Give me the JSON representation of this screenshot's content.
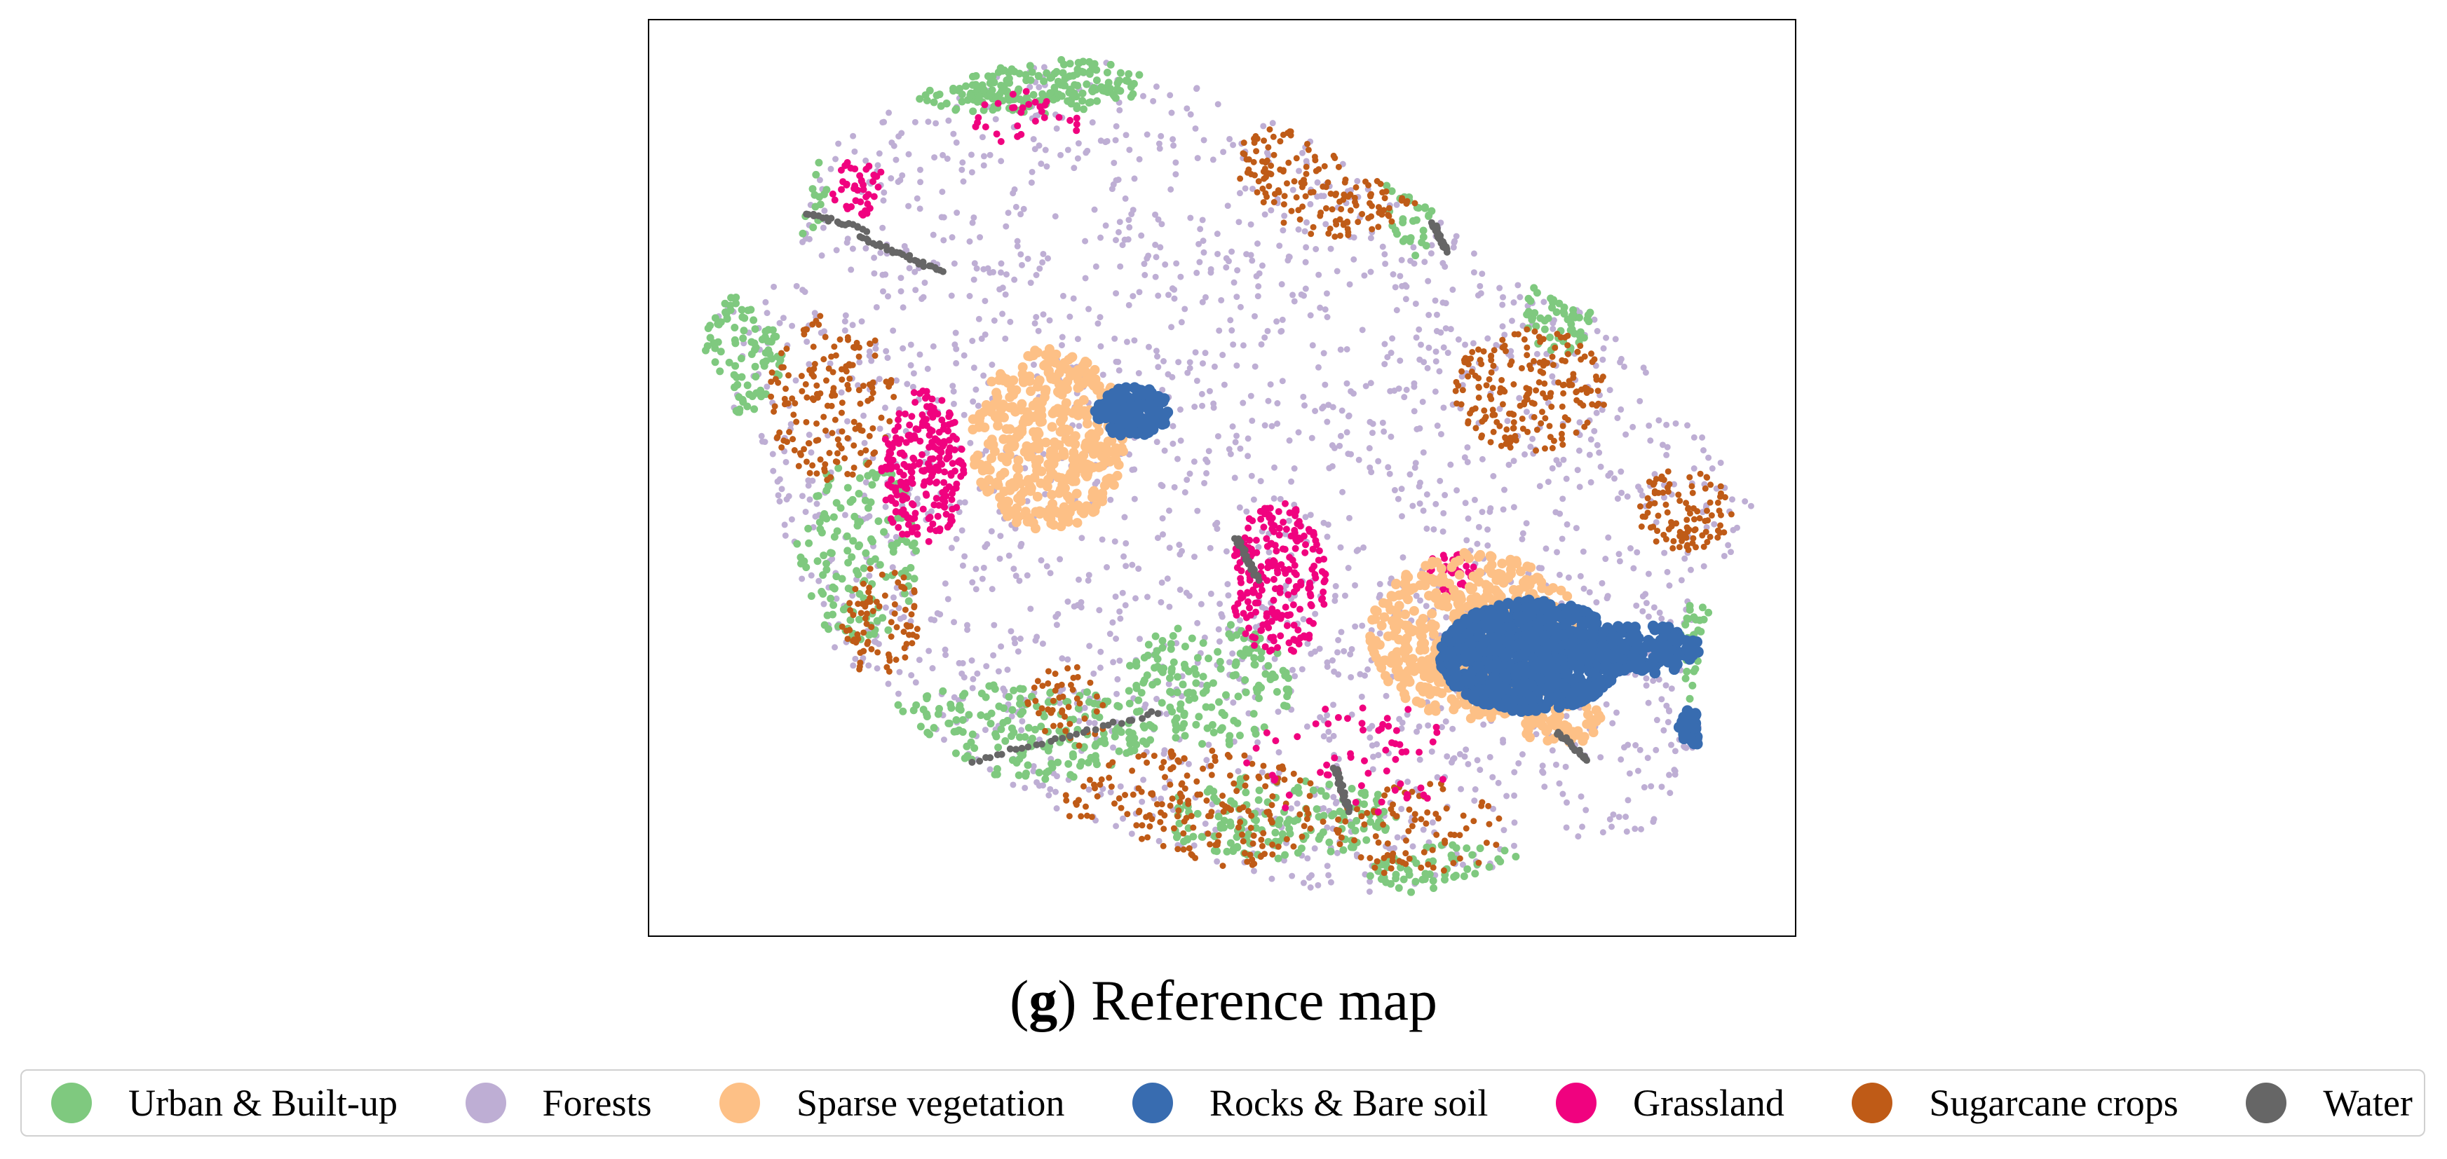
{
  "caption": {
    "letter": "g",
    "text": "Reference map"
  },
  "legend": [
    {
      "label": "Urban & Built-up",
      "color": "#7fc97f",
      "icon": "urban-marker-icon"
    },
    {
      "label": "Forests",
      "color": "#beaed4",
      "icon": "forests-marker-icon"
    },
    {
      "label": "Sparse vegetation",
      "color": "#fdc086",
      "icon": "sparse-vegetation-marker-icon"
    },
    {
      "label": "Rocks & Bare soil",
      "color": "#386cb0",
      "icon": "rocks-bare-soil-marker-icon"
    },
    {
      "label": "Grassland",
      "color": "#f0027f",
      "icon": "grassland-marker-icon"
    },
    {
      "label": "Sugarcane crops",
      "color": "#bf5b17",
      "icon": "sugarcane-marker-icon"
    },
    {
      "label": "Water",
      "color": "#666666",
      "icon": "water-marker-icon"
    }
  ]
}
